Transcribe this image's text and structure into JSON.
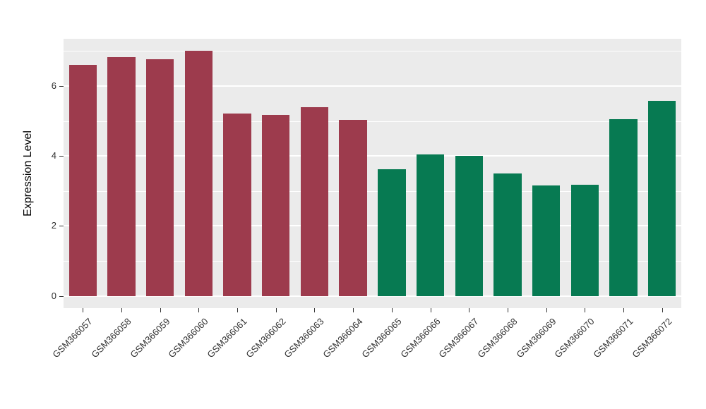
{
  "chart_data": {
    "type": "bar",
    "title": "",
    "xlabel": "",
    "ylabel": "Expression Level",
    "categories": [
      "GSM366057",
      "GSM366058",
      "GSM366059",
      "GSM366060",
      "GSM366061",
      "GSM366062",
      "GSM366063",
      "GSM366064",
      "GSM366065",
      "GSM366066",
      "GSM366067",
      "GSM366068",
      "GSM366069",
      "GSM366070",
      "GSM366071",
      "GSM366072"
    ],
    "values": [
      6.6,
      6.82,
      6.77,
      7.0,
      5.22,
      5.17,
      5.4,
      5.04,
      3.62,
      4.05,
      4.0,
      3.51,
      3.15,
      3.18,
      5.05,
      5.57
    ],
    "bar_colors": [
      "#9D3B4D",
      "#9D3B4D",
      "#9D3B4D",
      "#9D3B4D",
      "#9D3B4D",
      "#9D3B4D",
      "#9D3B4D",
      "#9D3B4D",
      "#077A52",
      "#077A52",
      "#077A52",
      "#077A52",
      "#077A52",
      "#077A52",
      "#077A52",
      "#077A52"
    ],
    "group_colors": {
      "group1_maroon": "#9D3B4D",
      "group2_green": "#077A52"
    },
    "yticks": [
      0,
      2,
      4,
      6
    ],
    "yticks_minor": [
      1,
      3,
      5,
      7
    ],
    "ydomain": [
      -0.35,
      7.35
    ],
    "bar_width_ratio": 0.72,
    "panel_bg": "#EBEBEB",
    "grid_color": "#FFFFFF",
    "grid": "on",
    "legend_position": "none"
  }
}
